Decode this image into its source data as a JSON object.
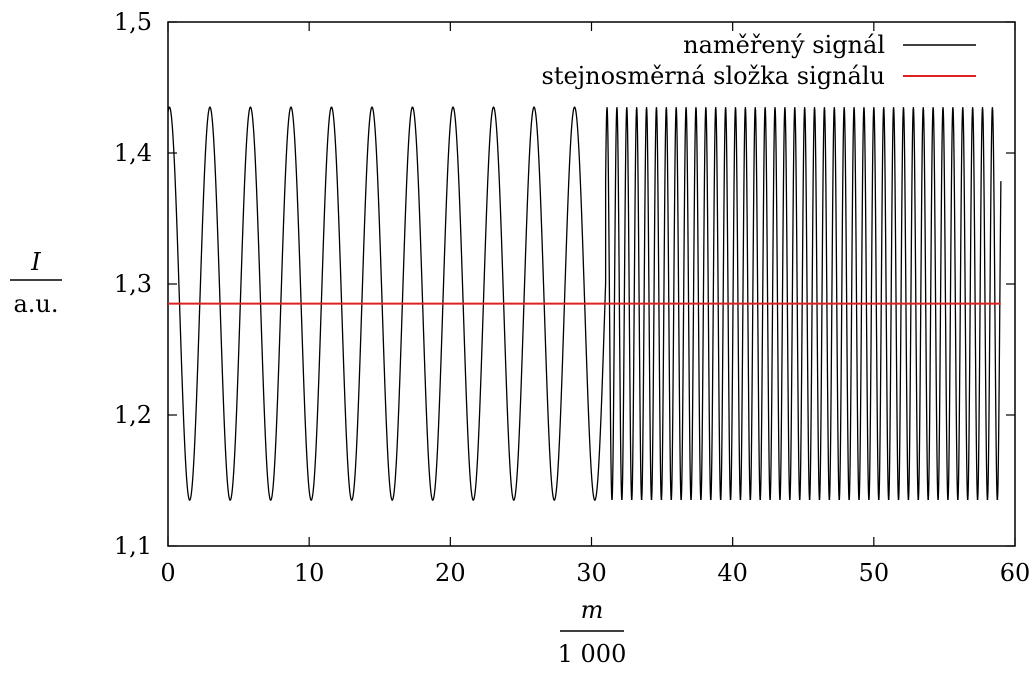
{
  "chart_data": {
    "type": "line",
    "title": "",
    "xlabel": {
      "numerator": "m",
      "denominator": "1 000"
    },
    "ylabel": {
      "numerator": "I",
      "denominator": "a.u."
    },
    "xlim": [
      0,
      60
    ],
    "ylim": [
      1.1,
      1.5
    ],
    "xticks": [
      0,
      10,
      20,
      30,
      40,
      50,
      60
    ],
    "yticks": [
      1.1,
      1.2,
      1.3,
      1.4,
      1.5
    ],
    "xtick_labels": [
      "0",
      "10",
      "20",
      "30",
      "40",
      "50",
      "60"
    ],
    "ytick_labels": [
      "1,1",
      "1,2",
      "1,3",
      "1,4",
      "1,5"
    ],
    "legend_position": "top-right",
    "grid": false,
    "series": [
      {
        "name": "naměřený signál",
        "color": "#000000",
        "kind": "oscillation",
        "x_range": [
          0,
          59
        ],
        "segments": [
          {
            "x_start": 0,
            "x_end": 31,
            "period": 2.87,
            "phase_x_of_peak": 0.1
          },
          {
            "x_start": 31,
            "x_end": 59,
            "period": 0.7,
            "phase_x_of_peak": 31.1
          }
        ],
        "max": 1.435,
        "min": 1.135
      },
      {
        "name": "stejnosměrná složka signálu",
        "color": "#dd2222",
        "kind": "constant",
        "x": [
          0,
          59
        ],
        "y": [
          1.285,
          1.285
        ]
      }
    ]
  }
}
